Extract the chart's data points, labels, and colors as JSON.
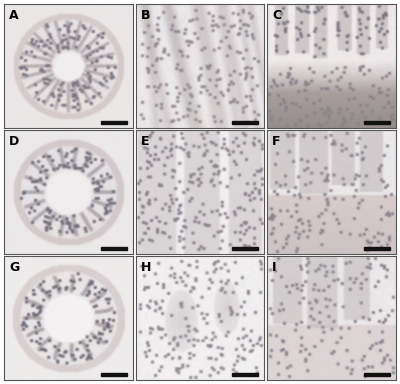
{
  "grid_rows": 3,
  "grid_cols": 3,
  "labels": [
    "A",
    "B",
    "C",
    "D",
    "E",
    "F",
    "G",
    "H",
    "I"
  ],
  "label_color": "black",
  "label_fontsize": 9,
  "label_fontweight": "bold",
  "background_color": "#ffffff",
  "border_color": "#555555",
  "border_linewidth": 0.8,
  "fig_width": 4.0,
  "fig_height": 3.84,
  "dpi": 100,
  "panel_bg": [
    "#e8dce4",
    "#ede5ea",
    "#eee6eb",
    "#e4dce8",
    "#e8e0ec",
    "#e6dde8",
    "#e6dfe8",
    "#eae2ec",
    "#e8e0ea"
  ],
  "scale_bar_color": "#111111",
  "wspace": 0.02,
  "hspace": 0.02
}
